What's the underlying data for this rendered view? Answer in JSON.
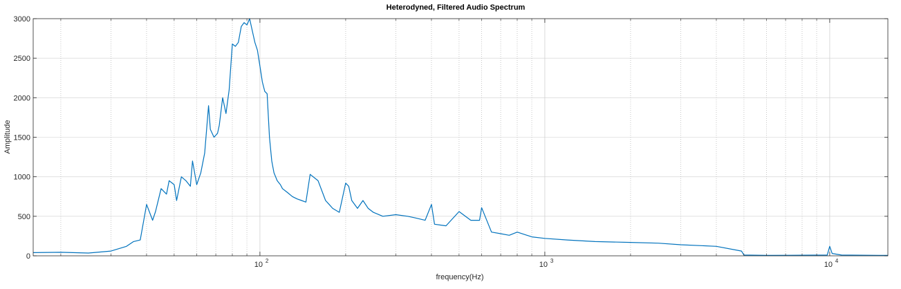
{
  "chart_data": {
    "type": "line",
    "title": "Heterodyned, Filtered Audio Spectrum",
    "xlabel": "frequency(Hz)",
    "ylabel": "Amplitude",
    "x_scale": "log",
    "xlim": [
      16,
      16000
    ],
    "ylim": [
      0,
      3000
    ],
    "yticks": [
      0,
      500,
      1000,
      1500,
      2000,
      2500,
      3000
    ],
    "ytick_labels": [
      "0",
      "500",
      "1000",
      "1500",
      "2000",
      "2500",
      "3000"
    ],
    "xticks_major": [
      100,
      1000,
      10000
    ],
    "xtick_labels": [
      {
        "base": "10",
        "exp": "2"
      },
      {
        "base": "10",
        "exp": "3"
      },
      {
        "base": "10",
        "exp": "4"
      }
    ],
    "grid": true,
    "line_color": "#0072bd",
    "series": [
      {
        "x": [
          16,
          20,
          25,
          30,
          34,
          36,
          38,
          40,
          42,
          43,
          45,
          47,
          48,
          50,
          51,
          53,
          55,
          57,
          58,
          60,
          62,
          64,
          66,
          67,
          69,
          71,
          72,
          74,
          76,
          78,
          80,
          82,
          84,
          86,
          88,
          90,
          92,
          94,
          96,
          98,
          100,
          102,
          104,
          106,
          108,
          110,
          112,
          115,
          118,
          120,
          125,
          130,
          135,
          140,
          145,
          150,
          160,
          170,
          175,
          180,
          190,
          200,
          205,
          210,
          220,
          230,
          240,
          250,
          270,
          300,
          330,
          350,
          380,
          400,
          410,
          450,
          500,
          550,
          590,
          600,
          650,
          700,
          750,
          800,
          900,
          1000,
          1200,
          1500,
          2000,
          2500,
          3000,
          4000,
          4900,
          5000,
          6000,
          8000,
          9800,
          10000,
          10200,
          11000,
          16000
        ],
        "y": [
          40,
          45,
          35,
          60,
          120,
          180,
          200,
          650,
          450,
          560,
          850,
          780,
          950,
          900,
          700,
          1000,
          950,
          880,
          1200,
          900,
          1050,
          1300,
          1900,
          1600,
          1500,
          1550,
          1650,
          2000,
          1800,
          2100,
          2680,
          2650,
          2700,
          2900,
          2950,
          2920,
          3000,
          2850,
          2700,
          2600,
          2400,
          2200,
          2080,
          2050,
          1500,
          1200,
          1050,
          950,
          900,
          850,
          800,
          750,
          720,
          700,
          680,
          1030,
          950,
          700,
          650,
          600,
          550,
          920,
          880,
          700,
          600,
          700,
          600,
          550,
          500,
          520,
          500,
          480,
          450,
          650,
          400,
          380,
          560,
          450,
          450,
          610,
          300,
          280,
          260,
          300,
          240,
          220,
          200,
          180,
          170,
          160,
          140,
          120,
          60,
          10,
          5,
          8,
          10,
          120,
          30,
          10,
          5
        ]
      }
    ]
  }
}
